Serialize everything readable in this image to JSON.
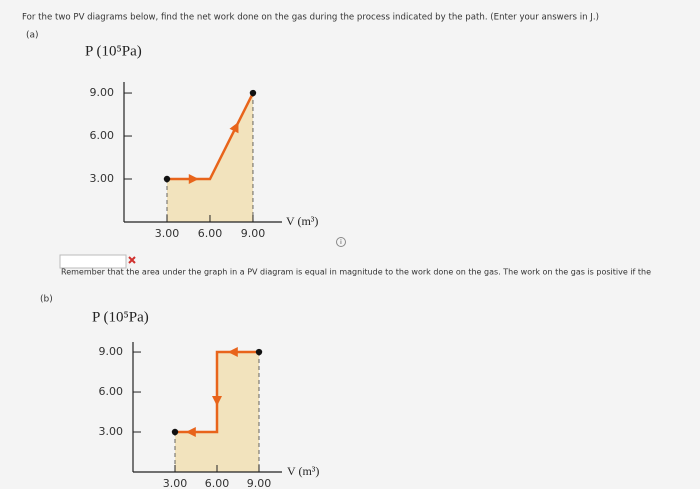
{
  "header": {
    "prompt": "For the two PV diagrams below, find the net work done on the gas during the process indicated by the path. (Enter your answers in J.)"
  },
  "parts": [
    {
      "label": "(a)",
      "y_axis_label": "P (10⁵Pa)",
      "x_axis_label": "V (m³)",
      "yticks": [
        {
          "value": 9,
          "label": "9.00"
        },
        {
          "value": 6,
          "label": "6.00"
        },
        {
          "value": 3,
          "label": "3.00"
        }
      ],
      "xticks": [
        {
          "value": 3,
          "label": "3.00"
        },
        {
          "value": 6,
          "label": "6.00"
        },
        {
          "value": 9,
          "label": "9.00"
        }
      ],
      "path": {
        "V": [
          3,
          6,
          9
        ],
        "P": [
          3,
          3,
          9
        ]
      },
      "feedback": "Remember that the area under the graph in a PV diagram is equal in magnitude to the work done on the gas. The work on the gas is positive if the"
    },
    {
      "label": "(b)",
      "y_axis_label": "P (10⁵Pa)",
      "x_axis_label": "V (m³)",
      "yticks": [
        {
          "value": 9,
          "label": "9.00"
        },
        {
          "value": 6,
          "label": "6.00"
        },
        {
          "value": 3,
          "label": "3.00"
        }
      ],
      "xticks": [
        {
          "value": 3,
          "label": "3.00"
        },
        {
          "value": 6,
          "label": "6.00"
        },
        {
          "value": 9,
          "label": "9.00"
        }
      ],
      "path": {
        "V": [
          9,
          6,
          6,
          3
        ],
        "P": [
          9,
          9,
          3,
          3
        ]
      }
    }
  ]
}
